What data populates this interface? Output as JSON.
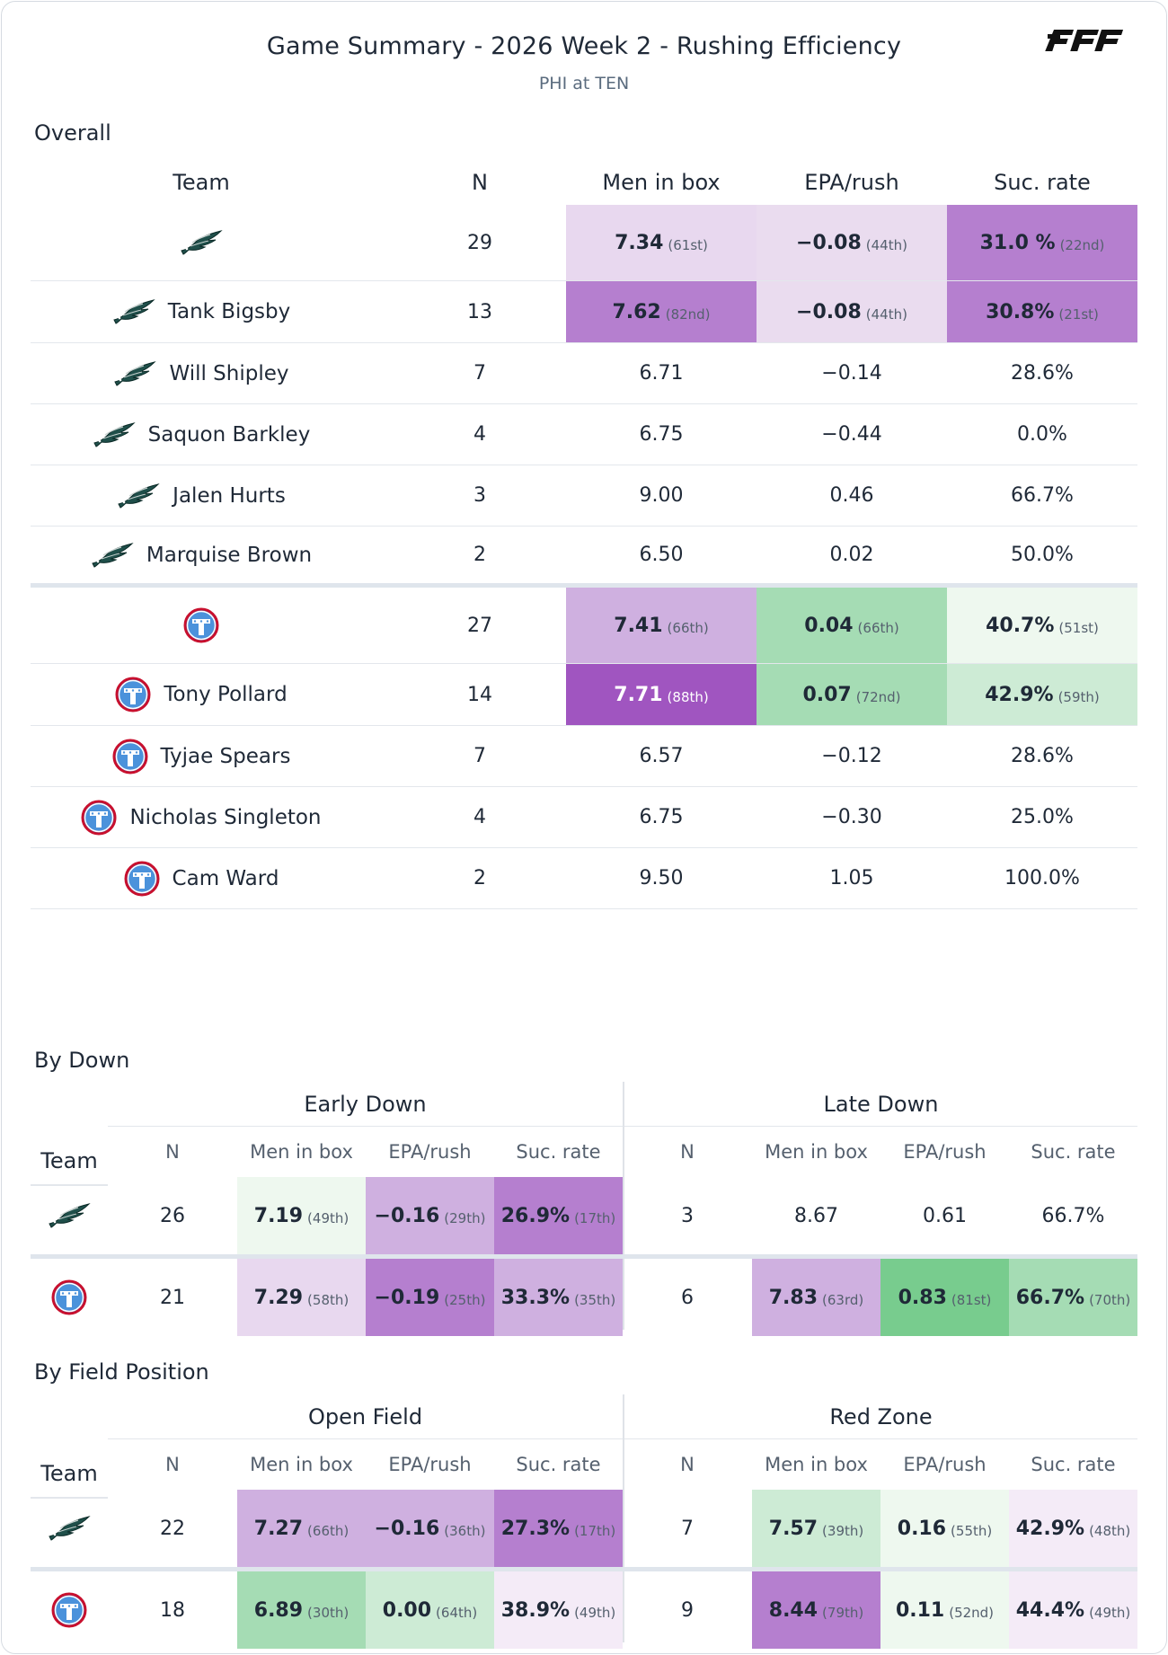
{
  "header": {
    "title": "Game Summary - 2026 Week 2 - Rushing Efficiency",
    "subtitle": "PHI at TEN",
    "logo_text": "PFF"
  },
  "sections": {
    "overall": "Overall",
    "by_down": "By Down",
    "by_field_position": "By Field Position"
  },
  "overall": {
    "columns": [
      "Team",
      "N",
      "Men in box",
      "EPA/rush",
      "Suc. rate"
    ],
    "rows": [
      {
        "name": "",
        "team": "eagles",
        "n": "29",
        "mib": "7.34",
        "mib_r": "(61st)",
        "epa": "−0.08",
        "epa_r": "(44th)",
        "suc": "31.0 %",
        "suc_r": "(22nd)"
      },
      {
        "name": "Tank Bigsby",
        "team": "eagles",
        "n": "13",
        "mib": "7.62",
        "mib_r": "(82nd)",
        "epa": "−0.08",
        "epa_r": "(44th)",
        "suc": "30.8%",
        "suc_r": "(21st)"
      },
      {
        "name": "Will Shipley",
        "team": "eagles",
        "n": "7",
        "mib": "6.71",
        "epa": "−0.14",
        "suc": "28.6%"
      },
      {
        "name": "Saquon Barkley",
        "team": "eagles",
        "n": "4",
        "mib": "6.75",
        "epa": "−0.44",
        "suc": "0.0%"
      },
      {
        "name": "Jalen Hurts",
        "team": "eagles",
        "n": "3",
        "mib": "9.00",
        "epa": "0.46",
        "suc": "66.7%"
      },
      {
        "name": "Marquise Brown",
        "team": "eagles",
        "n": "2",
        "mib": "6.50",
        "epa": "0.02",
        "suc": "50.0%"
      },
      {
        "name": "",
        "team": "titans",
        "n": "27",
        "mib": "7.41",
        "mib_r": "(66th)",
        "epa": "0.04",
        "epa_r": "(66th)",
        "suc": "40.7%",
        "suc_r": "(51st)"
      },
      {
        "name": "Tony Pollard",
        "team": "titans",
        "n": "14",
        "mib": "7.71",
        "mib_r": "(88th)",
        "epa": "0.07",
        "epa_r": "(72nd)",
        "suc": "42.9%",
        "suc_r": "(59th)"
      },
      {
        "name": "Tyjae Spears",
        "team": "titans",
        "n": "7",
        "mib": "6.57",
        "epa": "−0.12",
        "suc": "28.6%"
      },
      {
        "name": "Nicholas Singleton",
        "team": "titans",
        "n": "4",
        "mib": "6.75",
        "epa": "−0.30",
        "suc": "25.0%"
      },
      {
        "name": "Cam Ward",
        "team": "titans",
        "n": "2",
        "mib": "9.50",
        "epa": "1.05",
        "suc": "100.0%"
      }
    ]
  },
  "by_down": {
    "group1": "Early Down",
    "group2": "Late Down",
    "columns": [
      "Team",
      "N",
      "Men in box",
      "EPA/rush",
      "Suc. rate",
      "N",
      "Men in box",
      "EPA/rush",
      "Suc. rate"
    ],
    "rows": [
      {
        "team": "eagles",
        "n1": "26",
        "m1": "7.19",
        "m1_r": "(49th)",
        "e1": "−0.16",
        "e1_r": "(29th)",
        "s1": "26.9%",
        "s1_r": "(17th)",
        "n2": "3",
        "m2": "8.67",
        "e2": "0.61",
        "s2": "66.7%"
      },
      {
        "team": "titans",
        "n1": "21",
        "m1": "7.29",
        "m1_r": "(58th)",
        "e1": "−0.19",
        "e1_r": "(25th)",
        "s1": "33.3%",
        "s1_r": "(35th)",
        "n2": "6",
        "m2": "7.83",
        "m2_r": "(63rd)",
        "e2": "0.83",
        "e2_r": "(81st)",
        "s2": "66.7%",
        "s2_r": "(70th)"
      }
    ]
  },
  "by_field": {
    "group1": "Open Field",
    "group2": "Red Zone",
    "columns": [
      "Team",
      "N",
      "Men in box",
      "EPA/rush",
      "Suc. rate",
      "N",
      "Men in box",
      "EPA/rush",
      "Suc. rate"
    ],
    "rows": [
      {
        "team": "eagles",
        "n1": "22",
        "m1": "7.27",
        "m1_r": "(66th)",
        "e1": "−0.16",
        "e1_r": "(36th)",
        "s1": "27.3%",
        "s1_r": "(17th)",
        "n2": "7",
        "m2": "7.57",
        "m2_r": "(39th)",
        "e2": "0.16",
        "e2_r": "(55th)",
        "s2": "42.9%",
        "s2_r": "(48th)"
      },
      {
        "team": "titans",
        "n1": "18",
        "m1": "6.89",
        "m1_r": "(30th)",
        "e1": "0.00",
        "e1_r": "(64th)",
        "s1": "38.9%",
        "s1_r": "(49th)",
        "n2": "9",
        "m2": "8.44",
        "m2_r": "(79th)",
        "e2": "0.11",
        "e2_r": "(52nd)",
        "s2": "44.4%",
        "s2_r": "(49th)"
      }
    ]
  },
  "colors": {
    "purple_light": "#e8d8ef",
    "purple_mid": "#cfb0e0",
    "purple_strong": "#b57fcf",
    "purple_dark": "#a055c0",
    "green_faint": "#eef8ef",
    "green_light": "#cdebd5",
    "green_mid": "#a5dcb4",
    "green_strong": "#78cc8e"
  }
}
